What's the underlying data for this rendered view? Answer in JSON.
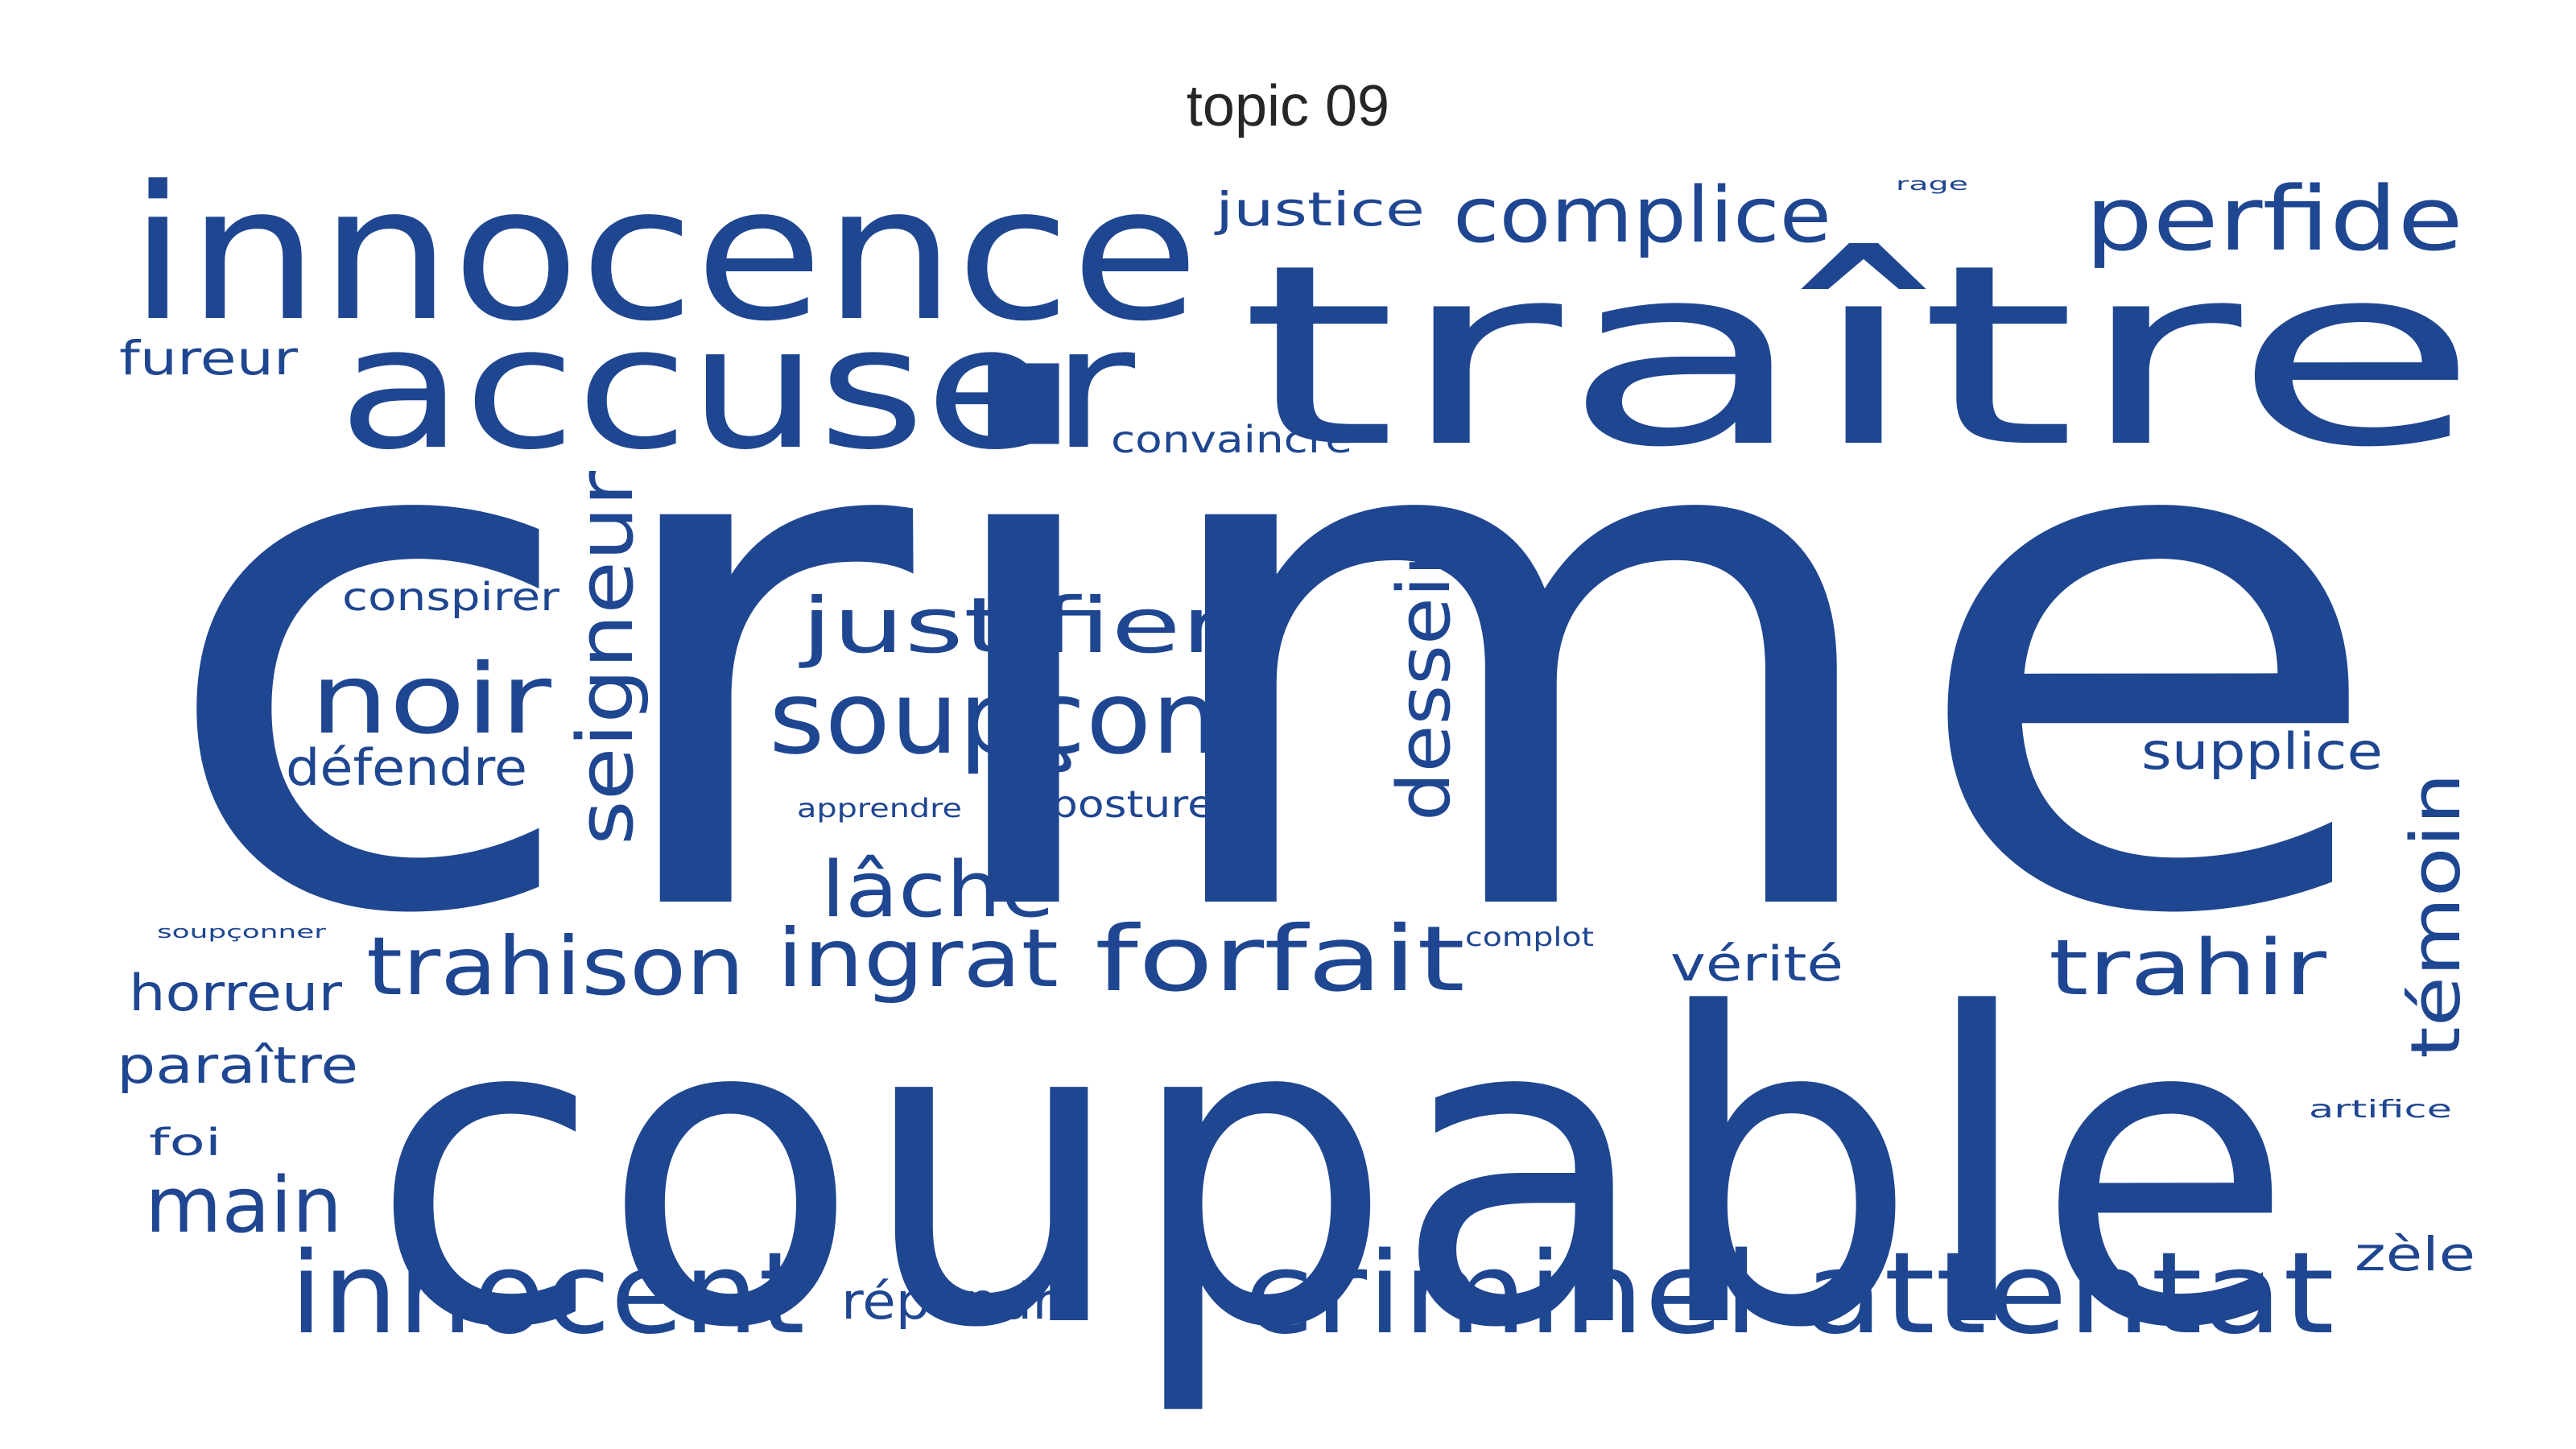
{
  "title": "topic 09",
  "color": "#1f4690",
  "words": [
    {
      "text": "crime",
      "weight": 1.0
    },
    {
      "text": "coupable",
      "weight": 0.7
    },
    {
      "text": "traître",
      "weight": 0.48
    },
    {
      "text": "innocence",
      "weight": 0.42
    },
    {
      "text": "accuser",
      "weight": 0.38
    },
    {
      "text": "innocent",
      "weight": 0.2
    },
    {
      "text": "criminel",
      "weight": 0.2
    },
    {
      "text": "attentat",
      "weight": 0.2
    },
    {
      "text": "soupçon",
      "weight": 0.18
    },
    {
      "text": "noir",
      "weight": 0.17
    },
    {
      "text": "perfide",
      "weight": 0.16
    },
    {
      "text": "forfait",
      "weight": 0.16
    },
    {
      "text": "trahison",
      "weight": 0.15
    },
    {
      "text": "seigneur",
      "weight": 0.14
    },
    {
      "text": "justifier",
      "weight": 0.14
    },
    {
      "text": "ingrat",
      "weight": 0.14
    },
    {
      "text": "trahir",
      "weight": 0.14
    },
    {
      "text": "lâche",
      "weight": 0.14
    },
    {
      "text": "complice",
      "weight": 0.13
    },
    {
      "text": "dessein",
      "weight": 0.13
    },
    {
      "text": "main",
      "weight": 0.13
    },
    {
      "text": "témoin",
      "weight": 0.12
    },
    {
      "text": "supplice",
      "weight": 0.09
    },
    {
      "text": "défendre",
      "weight": 0.09
    },
    {
      "text": "horreur",
      "weight": 0.09
    },
    {
      "text": "paraître",
      "weight": 0.09
    },
    {
      "text": "répondre",
      "weight": 0.09
    },
    {
      "text": "justice",
      "weight": 0.08
    },
    {
      "text": "fureur",
      "weight": 0.08
    },
    {
      "text": "vérité",
      "weight": 0.08
    },
    {
      "text": "zèle",
      "weight": 0.08
    },
    {
      "text": "conspirer",
      "weight": 0.07
    },
    {
      "text": "convaincre",
      "weight": 0.07
    },
    {
      "text": "imposture",
      "weight": 0.07
    },
    {
      "text": "foi",
      "weight": 0.07
    },
    {
      "text": "apprendre",
      "weight": 0.05
    },
    {
      "text": "complot",
      "weight": 0.05
    },
    {
      "text": "artifice",
      "weight": 0.05
    },
    {
      "text": "soupçonner",
      "weight": 0.04
    },
    {
      "text": "rage",
      "weight": 0.04
    }
  ]
}
